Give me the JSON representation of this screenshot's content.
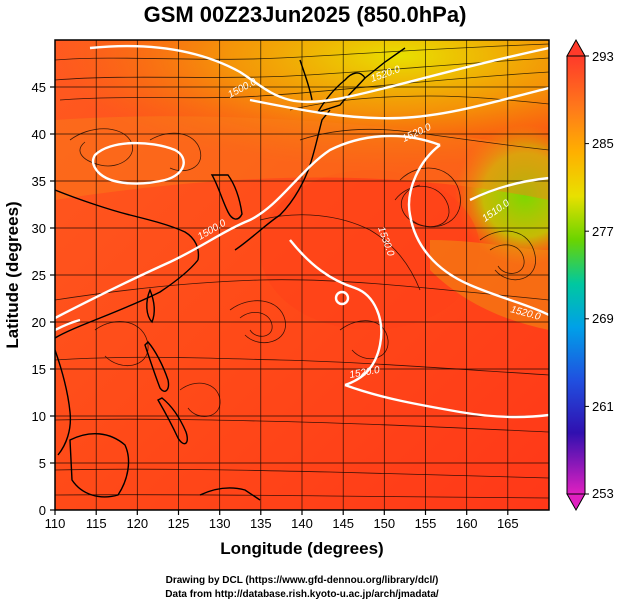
{
  "title": "GSM 00Z23Jun2025 (850.0hPa)",
  "xlabel": "Longitude (degrees)",
  "ylabel": "Latitude  (degrees)",
  "credit_line1": "Drawing by DCL (https://www.gfd-dennou.org/library/dcl/)",
  "credit_line2": "Data from http://database.rish.kyoto-u.ac.jp/arch/jmadata/",
  "colorbar": {
    "ticks": [
      "293",
      "285",
      "277",
      "269",
      "261",
      "253"
    ],
    "min": 253,
    "max": 293
  },
  "contour_labels": [
    "1500.0",
    "1520.0",
    "1500.0",
    "1530.0",
    "1520.0",
    "1520.0",
    "1510.0",
    "1520.0"
  ],
  "chart_data": {
    "type": "heatmap",
    "title": "GSM 00Z23Jun2025 (850.0hPa)",
    "xlabel": "Longitude (degrees)",
    "ylabel": "Latitude  (degrees)",
    "xlim": [
      110,
      170
    ],
    "ylim": [
      0,
      50
    ],
    "xticks": [
      "110",
      "115",
      "120",
      "125",
      "130",
      "135",
      "140",
      "145",
      "150",
      "155",
      "160",
      "165"
    ],
    "yticks": [
      "0",
      "5",
      "10",
      "15",
      "20",
      "25",
      "30",
      "35",
      "40",
      "45"
    ],
    "grid": true,
    "colorbar_range": [
      253,
      293
    ]
  }
}
